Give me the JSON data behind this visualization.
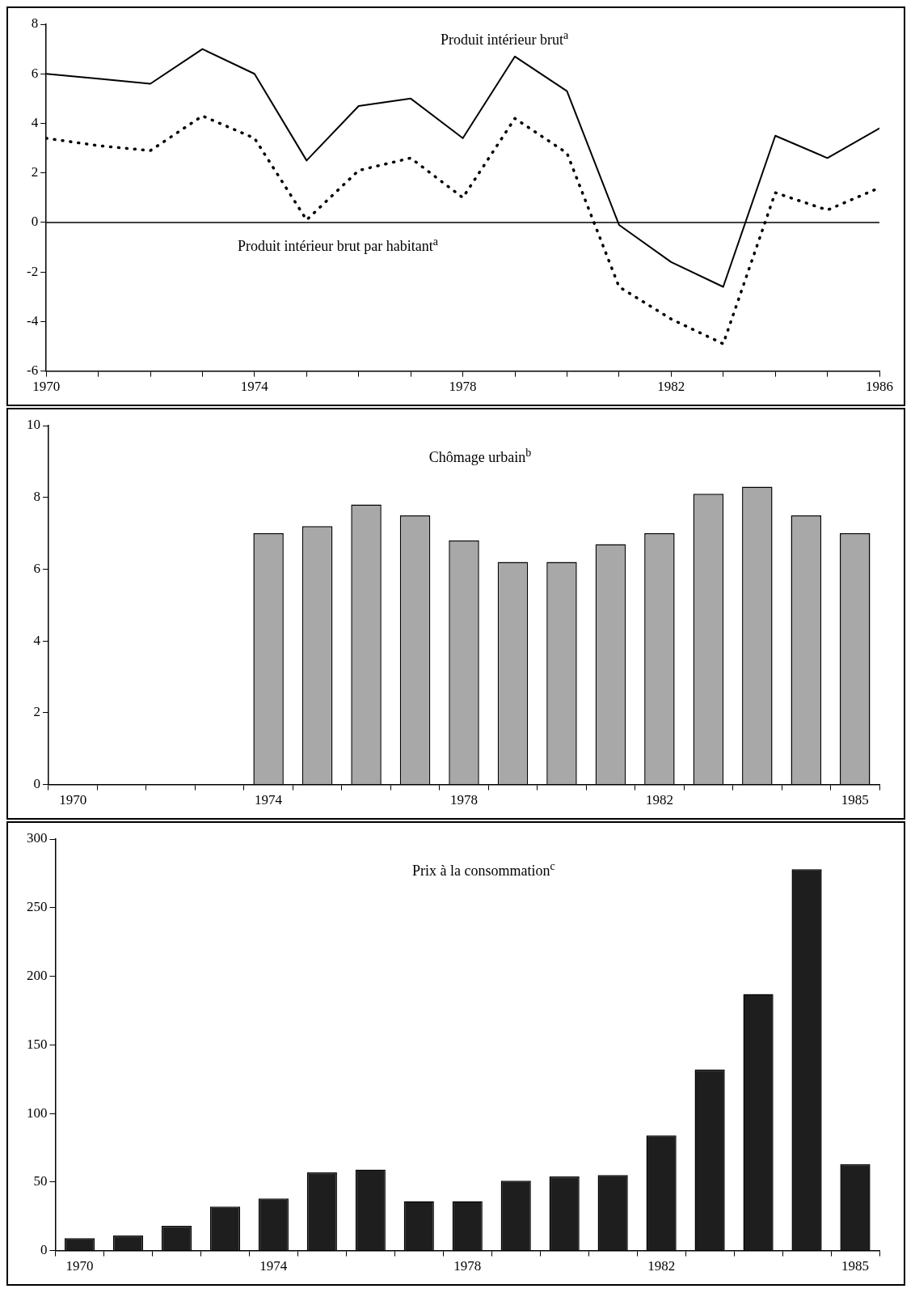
{
  "chart_data": [
    {
      "type": "line",
      "x": [
        1970,
        1971,
        1972,
        1973,
        1974,
        1975,
        1976,
        1977,
        1978,
        1979,
        1980,
        1981,
        1982,
        1983,
        1984,
        1985,
        1986
      ],
      "series": [
        {
          "name": "Produit intérieur brut$^{a}$",
          "color": "#000000",
          "line_style": "solid",
          "values": [
            6.0,
            5.8,
            5.6,
            7.0,
            6.0,
            2.5,
            4.7,
            5.0,
            3.4,
            6.7,
            5.3,
            -0.1,
            -1.6,
            -2.6,
            3.5,
            2.6,
            3.8
          ]
        },
        {
          "name": "Produit intérieur brut par habitant$^{a}$",
          "color": "#000000",
          "line_style": "dotted",
          "values": [
            3.4,
            3.1,
            2.9,
            4.3,
            3.4,
            0.1,
            2.1,
            2.6,
            1.0,
            4.2,
            2.8,
            -2.6,
            -3.9,
            -4.9,
            1.2,
            0.5,
            1.4
          ]
        }
      ],
      "marker": "none",
      "grid": false,
      "xlim": [
        1970,
        1986
      ],
      "xticks": [
        1970,
        {
          "value": 1971,
          "label": null
        },
        {
          "value": 1972,
          "label": null
        },
        {
          "value": 1973,
          "label": null
        },
        1974,
        {
          "value": 1975,
          "label": null
        },
        {
          "value": 1976,
          "label": null
        },
        {
          "value": 1977,
          "label": null
        },
        1978,
        {
          "value": 1979,
          "label": null
        },
        {
          "value": 1980,
          "label": null
        },
        {
          "value": 1981,
          "label": null
        },
        1982,
        {
          "value": 1983,
          "label": null
        },
        {
          "value": 1984,
          "label": null
        },
        {
          "value": 1985,
          "label": null
        },
        1986
      ],
      "ylim": [
        -6,
        8
      ],
      "yticks": [
        -6,
        -4,
        -2,
        0,
        2,
        4,
        6,
        8
      ],
      "ref_lines": [
        {
          "axis": "y",
          "value": 0,
          "color": "#000000"
        }
      ]
    },
    {
      "type": "bar",
      "title": "Chômage urbain$^{b}$",
      "categories": [
        "1970",
        null,
        null,
        null,
        "1974",
        null,
        null,
        null,
        "1978",
        null,
        null,
        null,
        "1982",
        null,
        null,
        null,
        "1985"
      ],
      "values": [
        null,
        null,
        null,
        null,
        7.0,
        7.2,
        7.8,
        7.5,
        6.8,
        6.2,
        6.2,
        6.7,
        7.0,
        8.1,
        8.3,
        7.5,
        7.0
      ],
      "color": "#a8a8a8",
      "grid": false,
      "ylim": [
        0,
        10
      ],
      "yticks": [
        0,
        2,
        4,
        6,
        8,
        10
      ]
    },
    {
      "type": "bar",
      "title": "Prix à la consommation$^{c}$",
      "categories": [
        "1970",
        null,
        null,
        null,
        "1974",
        null,
        null,
        null,
        "1978",
        null,
        null,
        null,
        "1982",
        null,
        null,
        null,
        "1985"
      ],
      "values": [
        9,
        11,
        18,
        32,
        38,
        57,
        59,
        36,
        36,
        51,
        54,
        55,
        84,
        132,
        187,
        278,
        63
      ],
      "color": "#1e1e1e",
      "grid": false,
      "ylim": [
        0,
        300
      ],
      "yticks": [
        0,
        50,
        100,
        150,
        200,
        250,
        300
      ]
    }
  ]
}
